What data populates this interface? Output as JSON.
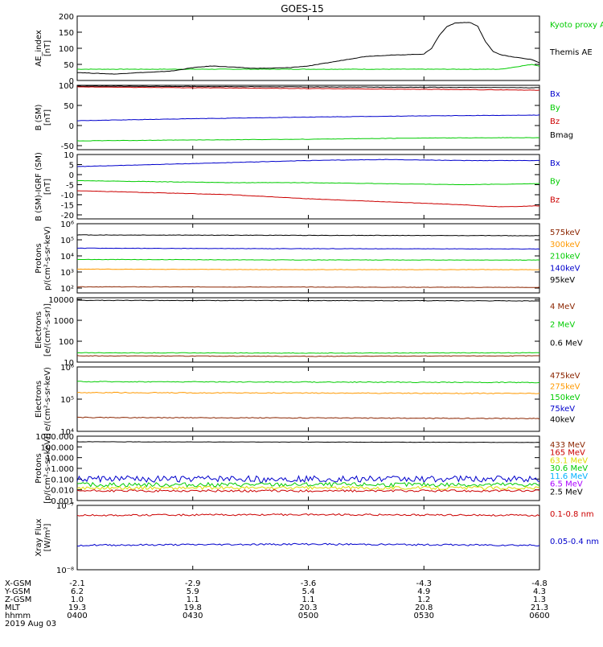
{
  "title": "GOES-15",
  "colors": {
    "black": "#000000",
    "red": "#cc0000",
    "green": "#00cc00",
    "blue": "#0000cc",
    "orange": "#ff9900",
    "yellow": "#dddd00",
    "cyan": "#00b0ff",
    "purple": "#aa00ff",
    "brown": "#8b2500"
  },
  "chart_data": [
    {
      "type": "line",
      "ylabel": [
        "AE_index",
        "[nT]"
      ],
      "yscale": "linear",
      "ylim": [
        0,
        200
      ],
      "ticks": [
        {
          "v": 0,
          "t": "0"
        },
        {
          "v": 50,
          "t": "50"
        },
        {
          "v": 100,
          "t": "100"
        },
        {
          "v": 150,
          "t": "150"
        },
        {
          "v": 200,
          "t": "200"
        }
      ],
      "legend": [
        {
          "text": "Kyoto proxy AE",
          "color": "green"
        },
        {
          "text": "Themis AE",
          "color": "black"
        }
      ],
      "series": [
        {
          "name": "Kyoto proxy AE",
          "color": "green",
          "x": [
            0,
            30,
            60,
            90,
            100,
            110,
            118,
            120
          ],
          "y": [
            35,
            35,
            35,
            35,
            35,
            35,
            50,
            45
          ]
        },
        {
          "name": "Themis AE",
          "color": "black",
          "x": [
            0,
            5,
            10,
            15,
            20,
            25,
            30,
            35,
            40,
            45,
            50,
            55,
            60,
            65,
            70,
            75,
            80,
            85,
            90,
            92,
            94,
            96,
            98,
            100,
            102,
            104,
            106,
            108,
            110,
            112,
            115,
            118,
            120
          ],
          "y": [
            25,
            22,
            20,
            24,
            26,
            30,
            40,
            45,
            42,
            38,
            38,
            40,
            45,
            55,
            65,
            75,
            78,
            80,
            82,
            100,
            140,
            168,
            178,
            180,
            180,
            168,
            120,
            90,
            80,
            75,
            70,
            65,
            55
          ]
        }
      ]
    },
    {
      "type": "line",
      "ylabel": [
        "B (SM)",
        "[nT]"
      ],
      "yscale": "linear",
      "ylim": [
        -60,
        100
      ],
      "ticks": [
        {
          "v": -50,
          "t": "-50"
        },
        {
          "v": 0,
          "t": "0"
        },
        {
          "v": 50,
          "t": "50"
        },
        {
          "v": 100,
          "t": "100"
        }
      ],
      "legend": [
        {
          "text": "Bx",
          "color": "blue"
        },
        {
          "text": "By",
          "color": "green"
        },
        {
          "text": "Bz",
          "color": "red"
        },
        {
          "text": "Bmag",
          "color": "black"
        }
      ],
      "series": [
        {
          "name": "Bmag",
          "color": "black",
          "x": [
            0,
            120
          ],
          "y": [
            98,
            94
          ]
        },
        {
          "name": "Bz",
          "color": "red",
          "x": [
            0,
            30,
            60,
            90,
            120
          ],
          "y": [
            96,
            94,
            92,
            90,
            88
          ]
        },
        {
          "name": "Bx",
          "color": "blue",
          "x": [
            0,
            30,
            60,
            90,
            120
          ],
          "y": [
            12,
            17,
            21,
            24,
            26
          ]
        },
        {
          "name": "By",
          "color": "green",
          "x": [
            0,
            30,
            60,
            90,
            120
          ],
          "y": [
            -38,
            -36,
            -34,
            -31,
            -30
          ]
        }
      ]
    },
    {
      "type": "line",
      "ylabel": [
        "B (SM)-IGRF (SM)",
        "[nT]"
      ],
      "yscale": "linear",
      "ylim": [
        -22,
        10
      ],
      "ticks": [
        {
          "v": 10,
          "t": "10"
        },
        {
          "v": 5,
          "t": "5"
        },
        {
          "v": 0,
          "t": "0"
        },
        {
          "v": -5,
          "t": "-5"
        },
        {
          "v": -10,
          "t": "-10"
        },
        {
          "v": -15,
          "t": "-15"
        },
        {
          "v": -20,
          "t": "-20"
        }
      ],
      "legend": [
        {
          "text": "Bx",
          "color": "blue"
        },
        {
          "text": "By",
          "color": "green"
        },
        {
          "text": "Bz",
          "color": "red"
        }
      ],
      "series": [
        {
          "name": "Bx",
          "color": "blue",
          "x": [
            0,
            20,
            40,
            60,
            80,
            100,
            120
          ],
          "y": [
            4,
            5,
            6,
            7,
            7.5,
            7,
            7
          ]
        },
        {
          "name": "By",
          "color": "green",
          "x": [
            0,
            20,
            40,
            60,
            80,
            100,
            120
          ],
          "y": [
            -3,
            -3.5,
            -4,
            -4,
            -4.5,
            -5,
            -4.5
          ]
        },
        {
          "name": "Bz",
          "color": "red",
          "x": [
            0,
            20,
            40,
            60,
            80,
            100,
            110,
            120
          ],
          "y": [
            -8,
            -9,
            -10,
            -12,
            -13.5,
            -15,
            -16,
            -15.5
          ]
        }
      ]
    },
    {
      "type": "line",
      "ylabel": [
        "Protons",
        "p/(cm²-s-sr-keV)"
      ],
      "yscale": "log",
      "ylim": [
        50,
        1000000
      ],
      "ticks": [
        {
          "v": 100,
          "t": "10²"
        },
        {
          "v": 1000,
          "t": "10³"
        },
        {
          "v": 10000,
          "t": "10⁴"
        },
        {
          "v": 100000,
          "t": "10⁵"
        },
        {
          "v": 1000000,
          "t": "10⁶"
        }
      ],
      "legend": [
        {
          "text": "575keV",
          "color": "brown"
        },
        {
          "text": "300keV",
          "color": "orange"
        },
        {
          "text": "210keV",
          "color": "green"
        },
        {
          "text": "140keV",
          "color": "blue"
        },
        {
          "text": "95keV",
          "color": "black"
        }
      ],
      "series": [
        {
          "name": "95keV",
          "color": "black",
          "x": [
            0,
            60,
            120
          ],
          "y": [
            200000,
            190000,
            180000
          ]
        },
        {
          "name": "140keV",
          "color": "blue",
          "x": [
            0,
            60,
            120
          ],
          "y": [
            30000,
            28000,
            27000
          ]
        },
        {
          "name": "210keV",
          "color": "green",
          "x": [
            0,
            60,
            120
          ],
          "y": [
            6000,
            5600,
            5500
          ]
        },
        {
          "name": "300keV",
          "color": "orange",
          "x": [
            0,
            60,
            120
          ],
          "y": [
            1500,
            1400,
            1400
          ]
        },
        {
          "name": "575keV",
          "color": "brown",
          "x": [
            0,
            60,
            120
          ],
          "y": [
            120,
            115,
            110
          ]
        }
      ]
    },
    {
      "type": "line",
      "ylabel": [
        "Electrons",
        "[e/(cm²-s-sr)]"
      ],
      "yscale": "log",
      "ylim": [
        10,
        12000
      ],
      "ticks": [
        {
          "v": 10,
          "t": "10"
        },
        {
          "v": 100,
          "t": "100"
        },
        {
          "v": 1000,
          "t": "1000"
        },
        {
          "v": 10000,
          "t": "10000"
        }
      ],
      "legend": [
        {
          "text": "4 MeV",
          "color": "brown"
        },
        {
          "text": "2 MeV",
          "color": "green"
        },
        {
          "text": "0.6 MeV",
          "color": "black"
        }
      ],
      "series": [
        {
          "name": "0.6 MeV",
          "color": "black",
          "x": [
            0,
            60,
            120
          ],
          "y": [
            9000,
            8800,
            8500
          ]
        },
        {
          "name": "2 MeV",
          "color": "green",
          "x": [
            0,
            60,
            120
          ],
          "y": [
            28,
            27,
            28
          ]
        },
        {
          "name": "4 MeV",
          "color": "brown",
          "x": [
            0,
            60,
            120
          ],
          "y": [
            20,
            19,
            20
          ]
        }
      ]
    },
    {
      "type": "line",
      "ylabel": [
        "Electrons",
        "e/(cm²-s-sr-keV)"
      ],
      "yscale": "log",
      "ylim": [
        10000,
        1000000
      ],
      "ticks": [
        {
          "v": 10000,
          "t": "10⁴"
        },
        {
          "v": 100000,
          "t": "10⁵"
        },
        {
          "v": 1000000,
          "t": "10⁶"
        }
      ],
      "legend": [
        {
          "text": "475keV",
          "color": "brown"
        },
        {
          "text": "275keV",
          "color": "orange"
        },
        {
          "text": "150keV",
          "color": "green"
        },
        {
          "text": "75keV",
          "color": "blue"
        },
        {
          "text": "40keV",
          "color": "black"
        }
      ],
      "series": [
        {
          "name": "150keV",
          "color": "green",
          "x": [
            0,
            60,
            120
          ],
          "y": [
            350000,
            340000,
            330000
          ]
        },
        {
          "name": "275keV",
          "color": "orange",
          "x": [
            0,
            60,
            120
          ],
          "y": [
            160000,
            155000,
            150000
          ]
        },
        {
          "name": "475keV",
          "color": "brown",
          "x": [
            0,
            60,
            120
          ],
          "y": [
            27000,
            26000,
            25000
          ]
        }
      ]
    },
    {
      "type": "line",
      "ylabel": [
        "Protons",
        "[p/(cm²-s-sr-keV)]"
      ],
      "yscale": "log",
      "ylim": [
        0.001,
        1000
      ],
      "ticks": [
        {
          "v": 0.001,
          "t": "0.001"
        },
        {
          "v": 0.01,
          "t": "0.010"
        },
        {
          "v": 0.1,
          "t": "0.100"
        },
        {
          "v": 1,
          "t": "1.000"
        },
        {
          "v": 10,
          "t": "10.000"
        },
        {
          "v": 100,
          "t": "100.000"
        },
        {
          "v": 1000,
          "t": "1000.000"
        }
      ],
      "legend": [
        {
          "text": "433 MeV",
          "color": "brown"
        },
        {
          "text": "165 MeV",
          "color": "red"
        },
        {
          "text": "63.1 MeV",
          "color": "yellow"
        },
        {
          "text": "30.6 MeV",
          "color": "green"
        },
        {
          "text": "11.6 MeV",
          "color": "cyan"
        },
        {
          "text": "6.5 MeV",
          "color": "purple"
        },
        {
          "text": "2.5 MeV",
          "color": "black"
        }
      ],
      "series": [
        {
          "name": "2.5 MeV",
          "color": "black",
          "x": [
            0,
            60,
            120
          ],
          "y": [
            300,
            280,
            260
          ]
        },
        {
          "name": "11.6 MeV",
          "color": "blue",
          "x": [
            0,
            120
          ],
          "y": [
            0.1,
            0.1
          ],
          "noise": 0.6
        },
        {
          "name": "30.6 MeV",
          "color": "green",
          "x": [
            0,
            120
          ],
          "y": [
            0.03,
            0.03
          ],
          "noise": 0.4
        },
        {
          "name": "63.1 MeV",
          "color": "yellow",
          "x": [
            0,
            120
          ],
          "y": [
            0.015,
            0.015
          ],
          "noise": 0.3
        },
        {
          "name": "165 MeV",
          "color": "red",
          "x": [
            0,
            120
          ],
          "y": [
            0.008,
            0.008
          ],
          "noise": 0.2
        }
      ]
    },
    {
      "type": "line",
      "ylabel": [
        "Xray Flux",
        "[W/m²]"
      ],
      "yscale": "log",
      "ylim": [
        1e-08,
        1e-07
      ],
      "ticks": [
        {
          "v": 1e-08,
          "t": "10⁻⁸"
        },
        {
          "v": 1e-07,
          "t": "10⁻⁷"
        }
      ],
      "legend": [
        {
          "text": "0.1-0.8 nm",
          "color": "red"
        },
        {
          "text": "0.05-0.4 nm",
          "color": "blue"
        }
      ],
      "series": [
        {
          "name": "0.1-0.8 nm",
          "color": "red",
          "x": [
            0,
            60,
            120
          ],
          "y": [
            7e-08,
            7.2e-08,
            7e-08
          ]
        },
        {
          "name": "0.05-0.4 nm",
          "color": "blue",
          "x": [
            0,
            60,
            120
          ],
          "y": [
            2.4e-08,
            2.5e-08,
            2.4e-08
          ]
        }
      ]
    }
  ],
  "x_axis": {
    "xlim": [
      0,
      120
    ],
    "tick_positions": [
      0,
      30,
      60,
      90,
      120
    ],
    "rows": [
      {
        "label": "X-GSM",
        "values": [
          "-2.1",
          "-2.9",
          "-3.6",
          "-4.3",
          "-4.8"
        ]
      },
      {
        "label": "Y-GSM",
        "values": [
          "6.2",
          "5.9",
          "5.4",
          "4.9",
          "4.3"
        ]
      },
      {
        "label": "Z-GSM",
        "values": [
          "1.0",
          "1.1",
          "1.1",
          "1.2",
          "1.3"
        ]
      },
      {
        "label": "MLT",
        "values": [
          "19.3",
          "19.8",
          "20.3",
          "20.8",
          "21.3"
        ]
      },
      {
        "label": "hhmm",
        "values": [
          "0400",
          "0430",
          "0500",
          "0530",
          "0600"
        ]
      }
    ],
    "date": "2019 Aug 03"
  }
}
